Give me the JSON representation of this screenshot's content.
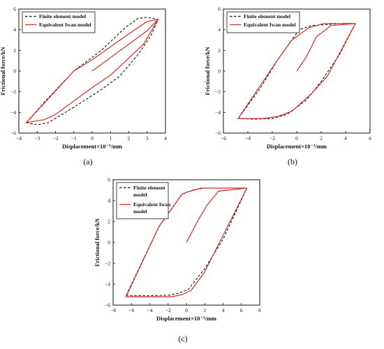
{
  "chart_data": [
    {
      "type": "line",
      "panel_label": "(a)",
      "xlabel": "Displacement×10⁻³/mm",
      "ylabel": "Frictional force/kN",
      "xlim": [
        -4,
        4
      ],
      "ylim": [
        -6,
        6
      ],
      "xticks": [
        -4,
        -3,
        -2,
        -1,
        0,
        1,
        2,
        3,
        4
      ],
      "yticks": [
        -6,
        -4,
        -2,
        0,
        2,
        4,
        6
      ],
      "grid": false,
      "legend": "top-left",
      "series": [
        {
          "name": "Finite element model",
          "style": "dashed",
          "color": "#111111",
          "points": [
            [
              -3.6,
              -5.0
            ],
            [
              -3.0,
              -5.2
            ],
            [
              -2.4,
              -5.0
            ],
            [
              -1.0,
              -3.5
            ],
            [
              0.5,
              -1.8
            ],
            [
              1.5,
              -0.5
            ],
            [
              2.5,
              1.6
            ],
            [
              3.2,
              3.4
            ],
            [
              3.6,
              5.0
            ],
            [
              3.0,
              5.2
            ],
            [
              2.5,
              5.1
            ],
            [
              1.8,
              4.2
            ],
            [
              0.5,
              2.0
            ],
            [
              -1.0,
              0.0
            ],
            [
              -2.5,
              -2.8
            ],
            [
              -3.6,
              -5.0
            ]
          ]
        },
        {
          "name": "Equivalent Iwan model",
          "style": "solid",
          "color": "#d62728",
          "points": [
            [
              0,
              0
            ],
            [
              1.0,
              1.3
            ],
            [
              2.0,
              2.6
            ],
            [
              3.0,
              3.9
            ],
            [
              3.6,
              5.0
            ],
            [
              3.0,
              4.8
            ],
            [
              2.0,
              3.6
            ],
            [
              0,
              1.1
            ],
            [
              -1.0,
              0.0
            ],
            [
              -3.6,
              -5.0
            ],
            [
              -2.6,
              -4.7
            ],
            [
              -2.0,
              -4.2
            ],
            [
              0,
              -1.6
            ],
            [
              1.0,
              -0.4
            ],
            [
              2.8,
              2.6
            ],
            [
              3.6,
              5.0
            ]
          ]
        }
      ]
    },
    {
      "type": "line",
      "panel_label": "(b)",
      "xlabel": "Displacement×10⁻³/mm",
      "ylabel": "Frictional force/kN",
      "xlim": [
        -6,
        6
      ],
      "ylim": [
        -6,
        6
      ],
      "xticks": [
        -6,
        -4,
        -2,
        0,
        2,
        4,
        6
      ],
      "yticks": [
        -6,
        -4,
        -2,
        0,
        2,
        4,
        6
      ],
      "grid": false,
      "legend": "top-left",
      "series": [
        {
          "name": "Finite element model",
          "style": "dashed",
          "color": "#111111",
          "points": [
            [
              -4.8,
              -4.6
            ],
            [
              -3.5,
              -4.65
            ],
            [
              -2.0,
              -4.6
            ],
            [
              -0.8,
              -4.2
            ],
            [
              0.8,
              -2.8
            ],
            [
              2.0,
              -1.0
            ],
            [
              3.5,
              1.6
            ],
            [
              4.8,
              4.6
            ],
            [
              3.5,
              4.6
            ],
            [
              2.5,
              4.5
            ],
            [
              1.2,
              4.4
            ],
            [
              0.2,
              4.0
            ],
            [
              -1.5,
              1.2
            ],
            [
              -3.0,
              -1.7
            ],
            [
              -4.8,
              -4.6
            ]
          ]
        },
        {
          "name": "Equivalent Iwan model",
          "style": "solid",
          "color": "#d62728",
          "points": [
            [
              0,
              0
            ],
            [
              0.8,
              1.4
            ],
            [
              1.6,
              3.3
            ],
            [
              2.8,
              4.4
            ],
            [
              4.8,
              4.6
            ],
            [
              2.2,
              4.6
            ],
            [
              1.0,
              4.2
            ],
            [
              -0.4,
              3.0
            ],
            [
              -1.5,
              1.2
            ],
            [
              -4.8,
              -4.6
            ],
            [
              -2.8,
              -4.6
            ],
            [
              -1.6,
              -4.4
            ],
            [
              -0.4,
              -3.9
            ],
            [
              1.2,
              -2.2
            ],
            [
              2.5,
              -0.5
            ],
            [
              4.8,
              4.6
            ]
          ]
        }
      ]
    },
    {
      "type": "line",
      "panel_label": "(c)",
      "xlabel": "Displacement×10⁻³/mm",
      "ylabel": "Frictional force/kN",
      "xlim": [
        -8,
        8
      ],
      "ylim": [
        -6,
        6
      ],
      "xticks": [
        -8,
        -6,
        -4,
        -2,
        0,
        2,
        4,
        6,
        8
      ],
      "yticks": [
        -6,
        -4,
        -2,
        0,
        2,
        4,
        6
      ],
      "grid": false,
      "legend": "top-left",
      "series": [
        {
          "name": "Finite element model",
          "style": "dashed",
          "color": "#111111",
          "points": [
            [
              -6.6,
              -5.1
            ],
            [
              -4.0,
              -5.1
            ],
            [
              -2.0,
              -5.05
            ],
            [
              -1.0,
              -4.9
            ],
            [
              0.2,
              -4.5
            ],
            [
              2.0,
              -2.5
            ],
            [
              4.0,
              0.3
            ],
            [
              6.6,
              5.2
            ],
            [
              4.0,
              5.2
            ],
            [
              2.0,
              5.2
            ],
            [
              0.8,
              5.05
            ],
            [
              -0.5,
              4.6
            ],
            [
              -3.0,
              1.5
            ],
            [
              -6.6,
              -5.1
            ]
          ]
        },
        {
          "name": "Equivalent Iwan model",
          "style": "solid",
          "color": "#d62728",
          "points": [
            [
              0,
              0
            ],
            [
              1.2,
              2.0
            ],
            [
              2.2,
              3.5
            ],
            [
              3.5,
              4.9
            ],
            [
              6.6,
              5.2
            ],
            [
              1.6,
              5.2
            ],
            [
              0.0,
              4.8
            ],
            [
              -0.5,
              4.6
            ],
            [
              -3.0,
              1.5
            ],
            [
              -6.6,
              -5.2
            ],
            [
              -1.6,
              -5.2
            ],
            [
              -0.5,
              -5.0
            ],
            [
              0.5,
              -4.6
            ],
            [
              2.0,
              -2.8
            ],
            [
              6.6,
              5.2
            ]
          ]
        }
      ]
    }
  ]
}
